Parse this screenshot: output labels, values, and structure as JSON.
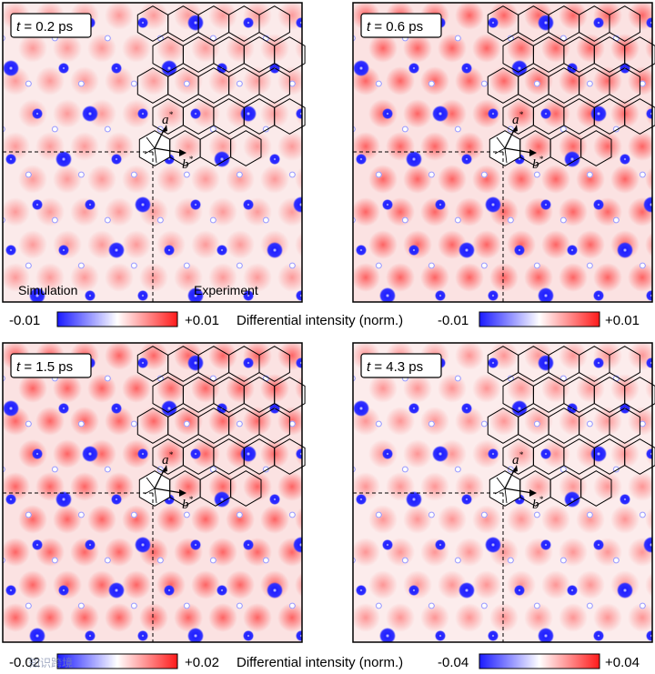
{
  "panels": [
    {
      "time_var": "t",
      "time_value": "= 0.2 ps",
      "intensity": 0.35,
      "left_label": "Simulation",
      "right_label": "Experiment"
    },
    {
      "time_var": "t",
      "time_value": "= 0.6 ps",
      "intensity": 0.85
    },
    {
      "time_var": "t",
      "time_value": "= 1.5 ps",
      "intensity": 0.85
    },
    {
      "time_var": "t",
      "time_value": "= 4.3 ps",
      "intensity": 0.4
    }
  ],
  "colorbars": [
    {
      "min": "-0.01",
      "max": "+0.01",
      "label": "Differential intensity (norm.)"
    },
    {
      "min": "-0.01",
      "max": "+0.01"
    },
    {
      "min": "-0.02",
      "max": "+0.02",
      "label": "Differential intensity (norm.)"
    },
    {
      "min": "-0.04",
      "max": "+0.04"
    }
  ],
  "vectors": {
    "a": "a",
    "b": "b",
    "star": "*"
  },
  "colors": {
    "negative": "#1a1aff",
    "positive": "#ff1a1a",
    "neutral": "#ffffff"
  },
  "watermark": "知识跨境"
}
